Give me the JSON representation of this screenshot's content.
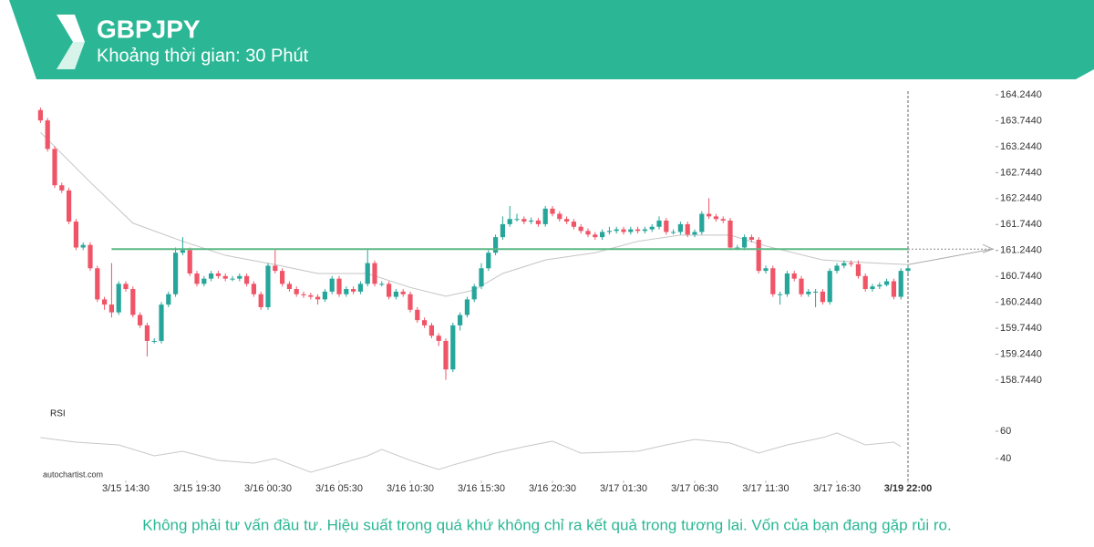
{
  "header": {
    "title": "GBPJPY",
    "subtitle": "Khoảng thời gian: 30 Phút"
  },
  "chart_data": [
    {
      "type": "candlestick",
      "up_color": "#26a69a",
      "down_color": "#ef5467",
      "open": [
        163.95,
        163.75,
        163.2,
        162.5,
        162.4,
        161.8,
        161.3,
        161.35,
        160.9,
        160.3,
        160.2,
        160.05,
        160.6,
        160.5,
        160.0,
        159.8,
        159.5,
        159.5,
        160.2,
        160.4,
        161.2,
        161.25,
        160.8,
        160.6,
        160.7,
        160.8,
        160.75,
        160.7,
        160.7,
        160.75,
        160.6,
        160.4,
        160.15,
        160.95,
        160.85,
        160.6,
        160.5,
        160.4,
        160.38,
        160.35,
        160.3,
        160.45,
        160.7,
        160.4,
        160.5,
        160.45,
        160.6,
        161.0,
        160.6,
        160.6,
        160.35,
        160.45,
        160.4,
        160.1,
        159.9,
        159.8,
        159.6,
        159.5,
        158.95,
        159.8,
        160.0,
        160.3,
        160.55,
        160.9,
        161.2,
        161.5,
        161.75,
        161.85,
        161.85,
        161.8,
        161.82,
        161.75,
        162.05,
        161.95,
        161.85,
        161.8,
        161.7,
        161.62,
        161.55,
        161.5,
        161.6,
        161.62,
        161.65,
        161.6,
        161.65,
        161.62,
        161.65,
        161.7,
        161.82,
        161.6,
        161.6,
        161.75,
        161.55,
        161.6,
        161.95,
        161.9,
        161.85,
        161.82,
        161.3,
        161.3,
        161.5,
        161.45,
        160.85,
        160.9,
        160.4,
        160.4,
        160.8,
        160.7,
        160.4,
        160.45,
        160.45,
        160.25,
        160.85,
        160.95,
        161.0,
        160.98,
        160.75,
        160.5,
        160.55,
        160.58,
        160.65,
        160.35,
        160.85
      ],
      "high": [
        164.0,
        163.8,
        163.25,
        162.55,
        162.45,
        161.85,
        161.4,
        161.4,
        160.95,
        160.35,
        161.0,
        160.65,
        160.65,
        160.55,
        160.05,
        159.85,
        159.55,
        160.25,
        160.45,
        161.3,
        161.5,
        161.3,
        160.85,
        160.75,
        160.85,
        160.85,
        160.8,
        160.75,
        160.8,
        160.8,
        160.65,
        160.45,
        161.0,
        161.25,
        160.9,
        160.65,
        160.55,
        160.45,
        160.43,
        160.4,
        160.5,
        160.75,
        160.75,
        160.55,
        160.55,
        160.65,
        161.25,
        161.05,
        160.65,
        160.65,
        160.5,
        160.5,
        160.45,
        160.15,
        159.95,
        159.85,
        159.65,
        159.55,
        159.85,
        160.05,
        160.35,
        160.6,
        161.0,
        161.25,
        161.55,
        161.9,
        162.1,
        161.95,
        161.9,
        161.88,
        161.87,
        162.1,
        162.1,
        162.0,
        161.9,
        161.85,
        161.75,
        161.67,
        161.6,
        161.65,
        161.7,
        161.7,
        161.7,
        161.7,
        161.7,
        161.7,
        161.75,
        161.9,
        161.87,
        161.65,
        161.8,
        161.8,
        161.65,
        162.0,
        162.25,
        161.95,
        161.9,
        161.87,
        161.35,
        161.55,
        161.55,
        161.5,
        160.95,
        160.95,
        160.45,
        160.85,
        160.85,
        160.75,
        160.5,
        160.5,
        160.5,
        160.9,
        161.0,
        161.05,
        161.05,
        161.05,
        160.8,
        160.6,
        160.63,
        160.7,
        160.7,
        160.9,
        160.95
      ],
      "low": [
        163.7,
        163.15,
        162.45,
        162.35,
        161.75,
        161.25,
        161.25,
        160.85,
        160.25,
        160.1,
        159.95,
        160.0,
        160.45,
        159.95,
        159.75,
        159.2,
        159.45,
        159.45,
        160.15,
        160.35,
        161.15,
        160.75,
        160.55,
        160.55,
        160.65,
        160.7,
        160.65,
        160.65,
        160.65,
        160.55,
        160.35,
        160.1,
        160.1,
        160.8,
        160.55,
        160.45,
        160.35,
        160.33,
        160.3,
        160.2,
        160.25,
        160.4,
        160.35,
        160.35,
        160.4,
        160.4,
        160.55,
        160.55,
        160.55,
        160.3,
        160.3,
        160.35,
        160.05,
        159.85,
        159.75,
        159.55,
        159.4,
        158.75,
        158.9,
        159.7,
        159.95,
        160.25,
        160.5,
        160.85,
        161.15,
        161.45,
        161.7,
        161.8,
        161.75,
        161.75,
        161.7,
        161.7,
        161.9,
        161.8,
        161.75,
        161.65,
        161.57,
        161.5,
        161.45,
        161.45,
        161.55,
        161.57,
        161.55,
        161.55,
        161.57,
        161.57,
        161.6,
        161.65,
        161.55,
        161.55,
        161.55,
        161.5,
        161.5,
        161.55,
        161.85,
        161.8,
        161.77,
        161.25,
        161.25,
        161.25,
        161.4,
        160.8,
        160.8,
        160.35,
        160.2,
        160.35,
        160.65,
        160.35,
        160.35,
        160.15,
        160.2,
        160.2,
        160.8,
        160.9,
        160.93,
        160.7,
        160.45,
        160.45,
        160.5,
        160.55,
        160.3,
        160.3,
        160.8
      ],
      "close": [
        163.75,
        163.2,
        162.5,
        162.4,
        161.8,
        161.3,
        161.35,
        160.9,
        160.3,
        160.2,
        160.05,
        160.6,
        160.5,
        160.0,
        159.8,
        159.5,
        159.5,
        160.2,
        160.4,
        161.2,
        161.25,
        160.8,
        160.6,
        160.7,
        160.8,
        160.75,
        160.7,
        160.7,
        160.75,
        160.6,
        160.4,
        160.15,
        160.95,
        160.85,
        160.6,
        160.5,
        160.4,
        160.38,
        160.35,
        160.3,
        160.45,
        160.7,
        160.4,
        160.5,
        160.45,
        160.6,
        161.0,
        160.6,
        160.6,
        160.35,
        160.45,
        160.4,
        160.1,
        159.9,
        159.8,
        159.6,
        159.5,
        158.95,
        159.8,
        160.0,
        160.3,
        160.55,
        160.9,
        161.2,
        161.5,
        161.75,
        161.85,
        161.85,
        161.8,
        161.82,
        161.75,
        162.05,
        161.95,
        161.85,
        161.8,
        161.7,
        161.62,
        161.55,
        161.5,
        161.6,
        161.62,
        161.65,
        161.6,
        161.65,
        161.62,
        161.65,
        161.7,
        161.82,
        161.6,
        161.6,
        161.75,
        161.55,
        161.6,
        161.95,
        161.9,
        161.85,
        161.82,
        161.3,
        161.3,
        161.5,
        161.45,
        160.85,
        160.9,
        160.4,
        160.4,
        160.8,
        160.7,
        160.4,
        160.45,
        160.45,
        160.25,
        160.85,
        160.95,
        161.0,
        160.98,
        160.75,
        160.5,
        160.55,
        160.58,
        160.65,
        160.35,
        160.85,
        160.9
      ],
      "xlim": [
        0,
        122
      ],
      "ylim": [
        158.244,
        164.244
      ],
      "yticks": [
        {
          "value": 164.244,
          "label": "164.2440"
        },
        {
          "value": 163.744,
          "label": "163.7440"
        },
        {
          "value": 163.244,
          "label": "163.2440"
        },
        {
          "value": 162.744,
          "label": "162.7440"
        },
        {
          "value": 162.244,
          "label": "162.2440"
        },
        {
          "value": 161.744,
          "label": "161.7440"
        },
        {
          "value": 161.244,
          "label": "161.2440"
        },
        {
          "value": 160.744,
          "label": "160.7440"
        },
        {
          "value": 160.244,
          "label": "160.2440"
        },
        {
          "value": 159.744,
          "label": "159.7440"
        },
        {
          "value": 159.244,
          "label": "159.2440"
        },
        {
          "value": 158.744,
          "label": "158.7440"
        }
      ],
      "xticks": [
        {
          "value": 12,
          "label": "3/15 14:30"
        },
        {
          "value": 22,
          "label": "3/15 19:30"
        },
        {
          "value": 32,
          "label": "3/16 00:30"
        },
        {
          "value": 42,
          "label": "3/16 05:30"
        },
        {
          "value": 52,
          "label": "3/16 10:30"
        },
        {
          "value": 62,
          "label": "3/16 15:30"
        },
        {
          "value": 72,
          "label": "3/16 20:30"
        },
        {
          "value": 82,
          "label": "3/17 01:30"
        },
        {
          "value": 92,
          "label": "3/17 06:30"
        },
        {
          "value": 102,
          "label": "3/17 11:30"
        },
        {
          "value": 112,
          "label": "3/17 16:30"
        },
        {
          "value": 122,
          "label": "3/19 22:00"
        }
      ],
      "crosshair_x": 122,
      "level": {
        "value": 161.27,
        "start": 10,
        "color": "#5cb885"
      },
      "ma": {
        "color": "#c4c4c4",
        "x": [
          0,
          7,
          13,
          20,
          26,
          33,
          39,
          46,
          52,
          57,
          61,
          65,
          71,
          78,
          84,
          90,
          97,
          102,
          110,
          116,
          122
        ],
        "values": [
          163.52,
          162.56,
          161.77,
          161.42,
          161.15,
          160.97,
          160.8,
          160.8,
          160.53,
          160.36,
          160.48,
          160.8,
          161.06,
          161.2,
          161.42,
          161.54,
          161.54,
          161.33,
          161.06,
          161.01,
          160.97
        ]
      }
    },
    {
      "type": "line",
      "title": "RSI",
      "color": "#c8c8c8",
      "x": [
        0,
        5,
        11,
        16,
        20,
        25,
        30,
        33,
        38,
        46,
        48,
        52,
        56,
        58,
        64,
        68,
        72,
        76,
        84,
        88,
        92,
        97,
        101,
        105,
        110,
        112,
        116,
        120,
        121
      ],
      "values": [
        55.3,
        52,
        50,
        42,
        45.3,
        38.7,
        36.7,
        40,
        30,
        42,
        46.7,
        38.7,
        32,
        35.3,
        44,
        48.7,
        52.7,
        44,
        45.3,
        50,
        54,
        51.3,
        44,
        50,
        55.3,
        58.7,
        50,
        52,
        48.7
      ],
      "xlim": [
        0,
        122
      ],
      "ylim": [
        30,
        70
      ],
      "yticks": [
        60,
        40
      ]
    }
  ],
  "watermark": "autochartist.com",
  "disclaimer": "Không phải tư vấn đầu tư. Hiệu suất trong quá khứ không chỉ ra kết quả trong tương lai. Vốn của bạn đang gặp rủi ro."
}
